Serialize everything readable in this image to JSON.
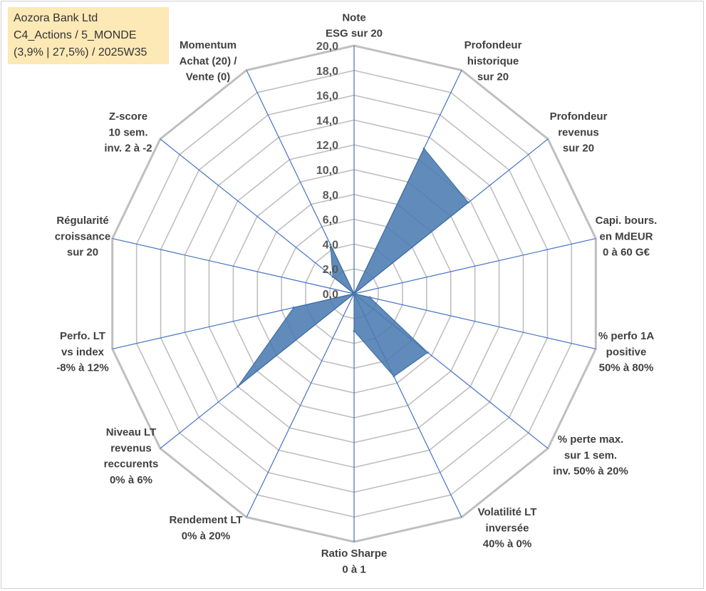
{
  "info_box": {
    "lines": [
      "Aozora Bank Ltd",
      "C4_Actions / 5_MONDE",
      "(3,9% | 27,5%) / 2025W35"
    ]
  },
  "colors": {
    "fill": "#4a7bb0",
    "axis": "#4472c4",
    "grid": "#bfbfbf",
    "outer_grid": "#bfbfbf"
  },
  "chart_data": {
    "type": "radar",
    "title": "",
    "rlim": [
      0,
      20
    ],
    "tick_labels": [
      "0,0",
      "2,0",
      "4,0",
      "6,0",
      "8,0",
      "10,0",
      "12,0",
      "14,0",
      "16,0",
      "18,0",
      "20,0"
    ],
    "grid": true,
    "legend": "none",
    "axes": [
      {
        "label": [
          "Note",
          "ESG sur 20"
        ],
        "value": 0
      },
      {
        "label": [
          "Profondeur",
          "historique",
          "sur 20"
        ],
        "value": 13.0
      },
      {
        "label": [
          "Profondeur",
          "revenus",
          "sur 20"
        ],
        "value": 11.8
      },
      {
        "label": [
          "Capi. bours.",
          "en MdEUR",
          "0 à 60 G€"
        ],
        "value": 0
      },
      {
        "label": [
          "% perfo 1A",
          "positive",
          "50% à 80%"
        ],
        "value": 1.3
      },
      {
        "label": [
          "% perte max.",
          "sur 1 sem.",
          "inv. 50% à 20%"
        ],
        "value": 7.6
      },
      {
        "label": [
          "Volatilité LT",
          "inversée",
          "40% à 0%"
        ],
        "value": 7.4
      },
      {
        "label": [
          "Ratio Sharpe",
          "0 à 1"
        ],
        "value": 3.0
      },
      {
        "label": [
          "Rendement LT",
          "0% à 20%"
        ],
        "value": 0
      },
      {
        "label": [
          "Niveau LT",
          "revenus",
          "reccurents",
          "0% à 6%"
        ],
        "value": 12.0
      },
      {
        "label": [
          "Perfo. LT",
          "vs index",
          "-8% à 12%"
        ],
        "value": 5.0
      },
      {
        "label": [
          "Régularité",
          "croissance",
          "sur 20"
        ],
        "value": 0
      },
      {
        "label": [
          "Z-score",
          "10 sem.",
          "inv. 2 à -2"
        ],
        "value": 2.2
      },
      {
        "label": [
          "Momentum",
          "Achat (20) /",
          "Vente (0)"
        ],
        "value": 4.4
      }
    ]
  }
}
